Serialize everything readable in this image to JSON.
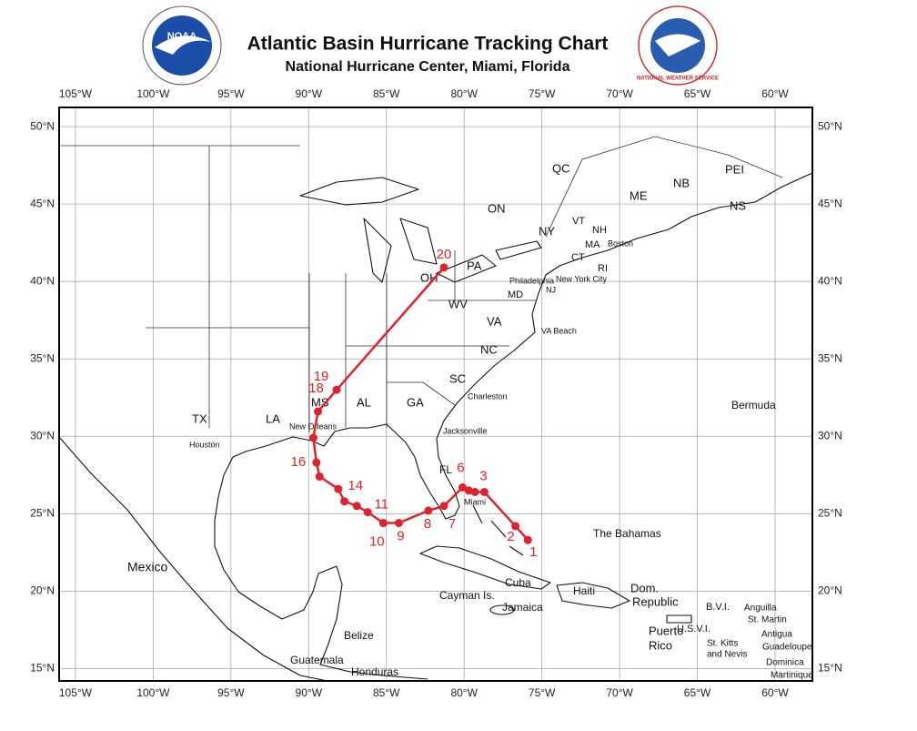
{
  "header": {
    "title": "Atlantic Basin Hurricane Tracking Chart",
    "subtitle": "National Hurricane Center, Miami, Florida",
    "logo_left": "NOAA",
    "logo_right": "NATIONAL WEATHER SERVICE"
  },
  "map": {
    "xlim": [
      -106.05,
      -57.6
    ],
    "ylim": [
      14.2,
      51.24
    ],
    "lonticks": [
      {
        "value": -105,
        "label": "105°W"
      },
      {
        "value": -100,
        "label": "100°W"
      },
      {
        "value": -95,
        "label": "95°W"
      },
      {
        "value": -90,
        "label": "90°W"
      },
      {
        "value": -85,
        "label": "85°W"
      },
      {
        "value": -80,
        "label": "80°W"
      },
      {
        "value": -75,
        "label": "75°W"
      },
      {
        "value": -70,
        "label": "70°W"
      },
      {
        "value": -65,
        "label": "65°W"
      },
      {
        "value": -60,
        "label": "60°W"
      }
    ],
    "latticks": [
      {
        "value": 50,
        "label": "50°N"
      },
      {
        "value": 45,
        "label": "45°N"
      },
      {
        "value": 40,
        "label": "40°N"
      },
      {
        "value": 35,
        "label": "35°N"
      },
      {
        "value": 30,
        "label": "30°N"
      },
      {
        "value": 25,
        "label": "25°N"
      },
      {
        "value": 20,
        "label": "20°N"
      },
      {
        "value": 15,
        "label": "15°N"
      }
    ],
    "grid": true,
    "track": {
      "color": "#e0222c",
      "points": [
        {
          "lon": -75.9,
          "lat": 23.3,
          "label": "1"
        },
        {
          "lon": -76.7,
          "lat": 24.2,
          "label": "2"
        },
        {
          "lon": -78.7,
          "lat": 26.4,
          "label": "3"
        },
        {
          "lon": -79.3,
          "lat": 26.4
        },
        {
          "lon": -79.7,
          "lat": 26.5
        },
        {
          "lon": -80.1,
          "lat": 26.7,
          "label": "6"
        },
        {
          "lon": -81.3,
          "lat": 25.5,
          "label": "7"
        },
        {
          "lon": -82.3,
          "lat": 25.2,
          "label": "8"
        },
        {
          "lon": -84.2,
          "lat": 24.4,
          "label": "9"
        },
        {
          "lon": -85.2,
          "lat": 24.4,
          "label": "10"
        },
        {
          "lon": -86.2,
          "lat": 25.1,
          "label": "11"
        },
        {
          "lon": -86.9,
          "lat": 25.5
        },
        {
          "lon": -87.7,
          "lat": 25.8
        },
        {
          "lon": -88.1,
          "lat": 26.6,
          "label": "14"
        },
        {
          "lon": -89.3,
          "lat": 27.4
        },
        {
          "lon": -89.5,
          "lat": 28.3,
          "label": "16"
        },
        {
          "lon": -89.7,
          "lat": 29.9
        },
        {
          "lon": -89.4,
          "lat": 31.6,
          "label": "18"
        },
        {
          "lon": -88.2,
          "lat": 33.0,
          "label": "19"
        },
        {
          "lon": -81.3,
          "lat": 40.9,
          "label": "20"
        }
      ]
    },
    "places": [
      "QC",
      "ON",
      "NY",
      "VT",
      "NH",
      "ME",
      "NB",
      "PEI",
      "NS",
      "MA",
      "Boston",
      "CT",
      "RI",
      "PA",
      "Philadelphia",
      "NJ",
      "New York City",
      "MD",
      "OH",
      "WV",
      "VA",
      "VA Beach",
      "NC",
      "SC",
      "Charleston",
      "GA",
      "AL",
      "MS",
      "LA",
      "TX",
      "Houston",
      "New Orleans",
      "Jacksonville",
      "FL",
      "Miami",
      "Bermuda",
      "The Bahamas",
      "Mexico",
      "Cuba",
      "Cayman Is.",
      "Jamaica",
      "Haiti",
      "Dom.",
      "Republic",
      "Puerto",
      "Rico",
      "B.V.I.",
      "U.S.V.I.",
      "Anguilla",
      "St. Martin",
      "St. Kitts",
      "and Nevis",
      "Antigua",
      "Guadeloupe",
      "Dominica",
      "Martinique",
      "Belize",
      "Guatemala",
      "Honduras"
    ]
  }
}
